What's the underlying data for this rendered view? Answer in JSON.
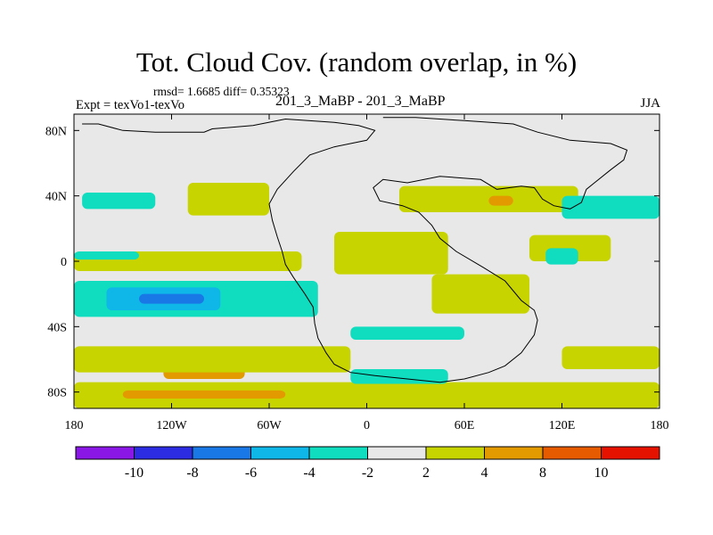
{
  "header": {
    "title": "Tot. Cloud Cov. (random overlap, in %)",
    "stats": "rmsd= 1.6685 diff= 0.35323",
    "experiment": "Expt = texVo1-texVo",
    "periods": "201_3_MaBP - 201_3_MaBP",
    "season": "JJA"
  },
  "chart_data": {
    "type": "heatmap",
    "title": "Tot. Cloud Cov. (random overlap, in %)",
    "xlabel": "",
    "ylabel": "",
    "xlim": [
      -180,
      180
    ],
    "ylim": [
      -90,
      90
    ],
    "x_ticks": [
      -180,
      -120,
      -60,
      0,
      60,
      120,
      180
    ],
    "x_tick_labels": [
      "180",
      "120W",
      "60W",
      "0",
      "60E",
      "120E",
      "180"
    ],
    "y_ticks": [
      80,
      40,
      0,
      -40,
      -80
    ],
    "y_tick_labels": [
      "80N",
      "40N",
      "0",
      "40S",
      "80S"
    ],
    "colorbar": {
      "levels": [
        -10,
        -8,
        -6,
        -4,
        -2,
        2,
        4,
        8,
        10
      ],
      "colors": [
        "#8a17e6",
        "#2c2ce2",
        "#1a78e6",
        "#0fb6e8",
        "#10dcc0",
        "#e8e8e8",
        "#c8d400",
        "#e29a00",
        "#e65a00",
        "#e61200"
      ]
    },
    "regions": [
      {
        "category": "2 to 4",
        "color": "#c8d400",
        "lon": [
          -180,
          180
        ],
        "lat": [
          -90,
          -74
        ]
      },
      {
        "category": "4 to 8",
        "color": "#e29a00",
        "lon": [
          -150,
          -50
        ],
        "lat": [
          -84,
          -79
        ]
      },
      {
        "category": "4 to 8",
        "color": "#e29a00",
        "lon": [
          -125,
          -75
        ],
        "lat": [
          -72,
          -60
        ]
      },
      {
        "category": "2 to 4",
        "color": "#c8d400",
        "lon": [
          -180,
          -10
        ],
        "lat": [
          -68,
          -52
        ]
      },
      {
        "category": "2 to 4",
        "color": "#c8d400",
        "lon": [
          120,
          180
        ],
        "lat": [
          -66,
          -52
        ]
      },
      {
        "category": "2 to 4",
        "color": "#c8d400",
        "lon": [
          -180,
          -40
        ],
        "lat": [
          -6,
          6
        ]
      },
      {
        "category": "2 to 4",
        "color": "#c8d400",
        "lon": [
          -110,
          -60
        ],
        "lat": [
          28,
          48
        ]
      },
      {
        "category": "2 to 4",
        "color": "#c8d400",
        "lon": [
          -20,
          50
        ],
        "lat": [
          -8,
          18
        ]
      },
      {
        "category": "2 to 4",
        "color": "#c8d400",
        "lon": [
          40,
          100
        ],
        "lat": [
          -32,
          -8
        ]
      },
      {
        "category": "2 to 4",
        "color": "#c8d400",
        "lon": [
          20,
          130
        ],
        "lat": [
          30,
          46
        ]
      },
      {
        "category": "2 to 4",
        "color": "#c8d400",
        "lon": [
          100,
          150
        ],
        "lat": [
          0,
          16
        ]
      },
      {
        "category": "4 to 8",
        "color": "#e29a00",
        "lon": [
          75,
          90
        ],
        "lat": [
          34,
          40
        ]
      },
      {
        "category": "-4 to -2",
        "color": "#10dcc0",
        "lon": [
          -180,
          -30
        ],
        "lat": [
          -34,
          -12
        ]
      },
      {
        "category": "-6 to -4",
        "color": "#0fb6e8",
        "lon": [
          -160,
          -90
        ],
        "lat": [
          -30,
          -16
        ]
      },
      {
        "category": "-8 to -6",
        "color": "#1a78e6",
        "lon": [
          -140,
          -100
        ],
        "lat": [
          -26,
          -20
        ]
      },
      {
        "category": "-4 to -2",
        "color": "#10dcc0",
        "lon": [
          -180,
          -140
        ],
        "lat": [
          1,
          6
        ]
      },
      {
        "category": "-4 to -2",
        "color": "#10dcc0",
        "lon": [
          -175,
          -130
        ],
        "lat": [
          32,
          42
        ]
      },
      {
        "category": "-4 to -2",
        "color": "#10dcc0",
        "lon": [
          -10,
          60
        ],
        "lat": [
          -48,
          -40
        ]
      },
      {
        "category": "-4 to -2",
        "color": "#10dcc0",
        "lon": [
          -10,
          50
        ],
        "lat": [
          -75,
          -66
        ]
      },
      {
        "category": "-4 to -2",
        "color": "#10dcc0",
        "lon": [
          120,
          180
        ],
        "lat": [
          26,
          40
        ]
      },
      {
        "category": "-4 to -2",
        "color": "#10dcc0",
        "lon": [
          110,
          130
        ],
        "lat": [
          -2,
          8
        ]
      }
    ]
  }
}
